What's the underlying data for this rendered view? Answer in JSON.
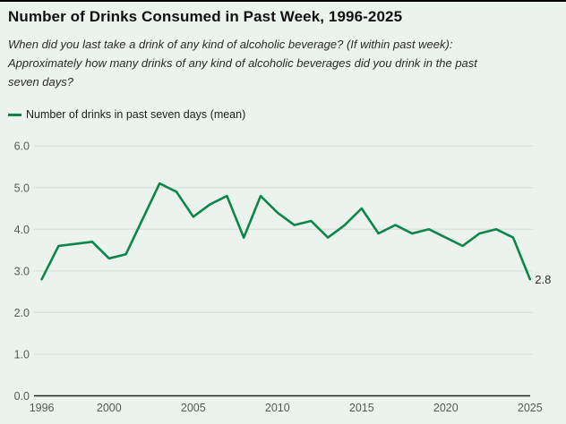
{
  "header": {
    "title": "Number of Drinks Consumed in Past Week, 1996-2025",
    "subtitle_lines": [
      "When did you last take a drink of any kind of alcoholic beverage? (If within past week):",
      "Approximately how many drinks of any kind of alcoholic beverages did you drink in the past",
      "seven days?"
    ]
  },
  "legend": {
    "label": "Number of drinks in past seven days (mean)"
  },
  "colors": {
    "background": "#ecf2ed",
    "line": "#0c864a",
    "gridline": "#d6dbd6",
    "axis": "#1f1f1f",
    "tick_text": "#595959",
    "end_label_text": "#2e2e2e"
  },
  "chart_data": {
    "type": "line",
    "title": "Number of Drinks Consumed in Past Week, 1996-2025",
    "xlabel": "",
    "ylabel": "",
    "xlim": [
      1996,
      2025
    ],
    "ylim": [
      0,
      6
    ],
    "grid": "horizontal",
    "legend_position": "top-left",
    "x_ticks": [
      1996,
      2000,
      2005,
      2010,
      2015,
      2020,
      2025
    ],
    "y_ticks": [
      "0.0",
      "1.0",
      "2.0",
      "3.0",
      "4.0",
      "5.0",
      "6.0"
    ],
    "series": [
      {
        "name": "Number of drinks in past seven days (mean)",
        "points": [
          [
            1996,
            2.8
          ],
          [
            1997,
            3.6
          ],
          [
            1999,
            3.7
          ],
          [
            2000,
            3.3
          ],
          [
            2001,
            3.4
          ],
          [
            2003,
            5.1
          ],
          [
            2004,
            4.9
          ],
          [
            2005,
            4.3
          ],
          [
            2006,
            4.6
          ],
          [
            2007,
            4.8
          ],
          [
            2008,
            3.8
          ],
          [
            2009,
            4.8
          ],
          [
            2010,
            4.4
          ],
          [
            2011,
            4.1
          ],
          [
            2012,
            4.2
          ],
          [
            2013,
            3.8
          ],
          [
            2014,
            4.1
          ],
          [
            2015,
            4.5
          ],
          [
            2016,
            3.9
          ],
          [
            2017,
            4.1
          ],
          [
            2018,
            3.9
          ],
          [
            2019,
            4.0
          ],
          [
            2021,
            3.6
          ],
          [
            2022,
            3.9
          ],
          [
            2023,
            4.0
          ],
          [
            2024,
            3.8
          ],
          [
            2025,
            2.8
          ]
        ]
      }
    ],
    "end_label": "2.8"
  }
}
